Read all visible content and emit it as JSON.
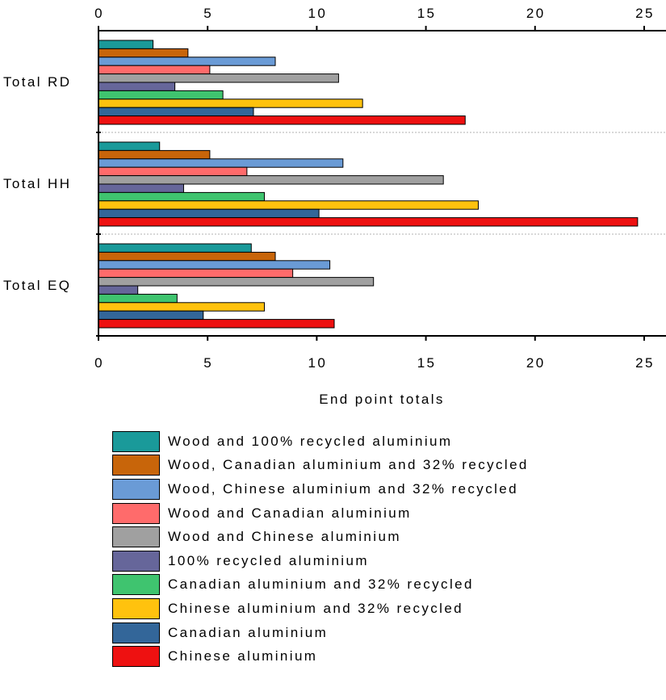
{
  "chart_data": {
    "type": "bar",
    "orientation": "horizontal",
    "categories": [
      "Total RD",
      "Total HH",
      "Total EQ"
    ],
    "xlabel": "End point totals",
    "xlim": [
      0,
      26
    ],
    "xticks": [
      0,
      5,
      10,
      15,
      20,
      25
    ],
    "series": [
      {
        "name": "Wood and 100% recycled aluminium",
        "color": "#1a9a9a",
        "values": [
          2.5,
          2.8,
          7.0
        ]
      },
      {
        "name": "Wood, Canadian aluminium and 32% recycled",
        "color": "#c8650a",
        "values": [
          4.1,
          5.1,
          8.1
        ]
      },
      {
        "name": "Wood, Chinese aluminium and 32% recycled",
        "color": "#6a9bd6",
        "values": [
          8.1,
          11.2,
          10.6
        ]
      },
      {
        "name": "Wood and Canadian aluminium",
        "color": "#ff6b6b",
        "values": [
          5.1,
          6.8,
          8.9
        ]
      },
      {
        "name": "Wood and Chinese aluminium",
        "color": "#a0a0a0",
        "values": [
          11.0,
          15.8,
          12.6
        ]
      },
      {
        "name": "100% recycled aluminium",
        "color": "#66669a",
        "values": [
          3.5,
          3.9,
          1.8
        ]
      },
      {
        "name": "Canadian aluminium and 32% recycled",
        "color": "#3fc46f",
        "values": [
          5.7,
          7.6,
          3.6
        ]
      },
      {
        "name": "Chinese aluminium and 32% recycled",
        "color": "#ffc20e",
        "values": [
          12.1,
          17.4,
          7.6
        ]
      },
      {
        "name": "Canadian aluminium",
        "color": "#336699",
        "values": [
          7.1,
          10.1,
          4.8
        ]
      },
      {
        "name": "Chinese aluminium",
        "color": "#ee1111",
        "values": [
          16.8,
          24.7,
          10.8
        ]
      }
    ],
    "grid": "horizontal dotted separators between categories",
    "legend_position": "bottom"
  }
}
